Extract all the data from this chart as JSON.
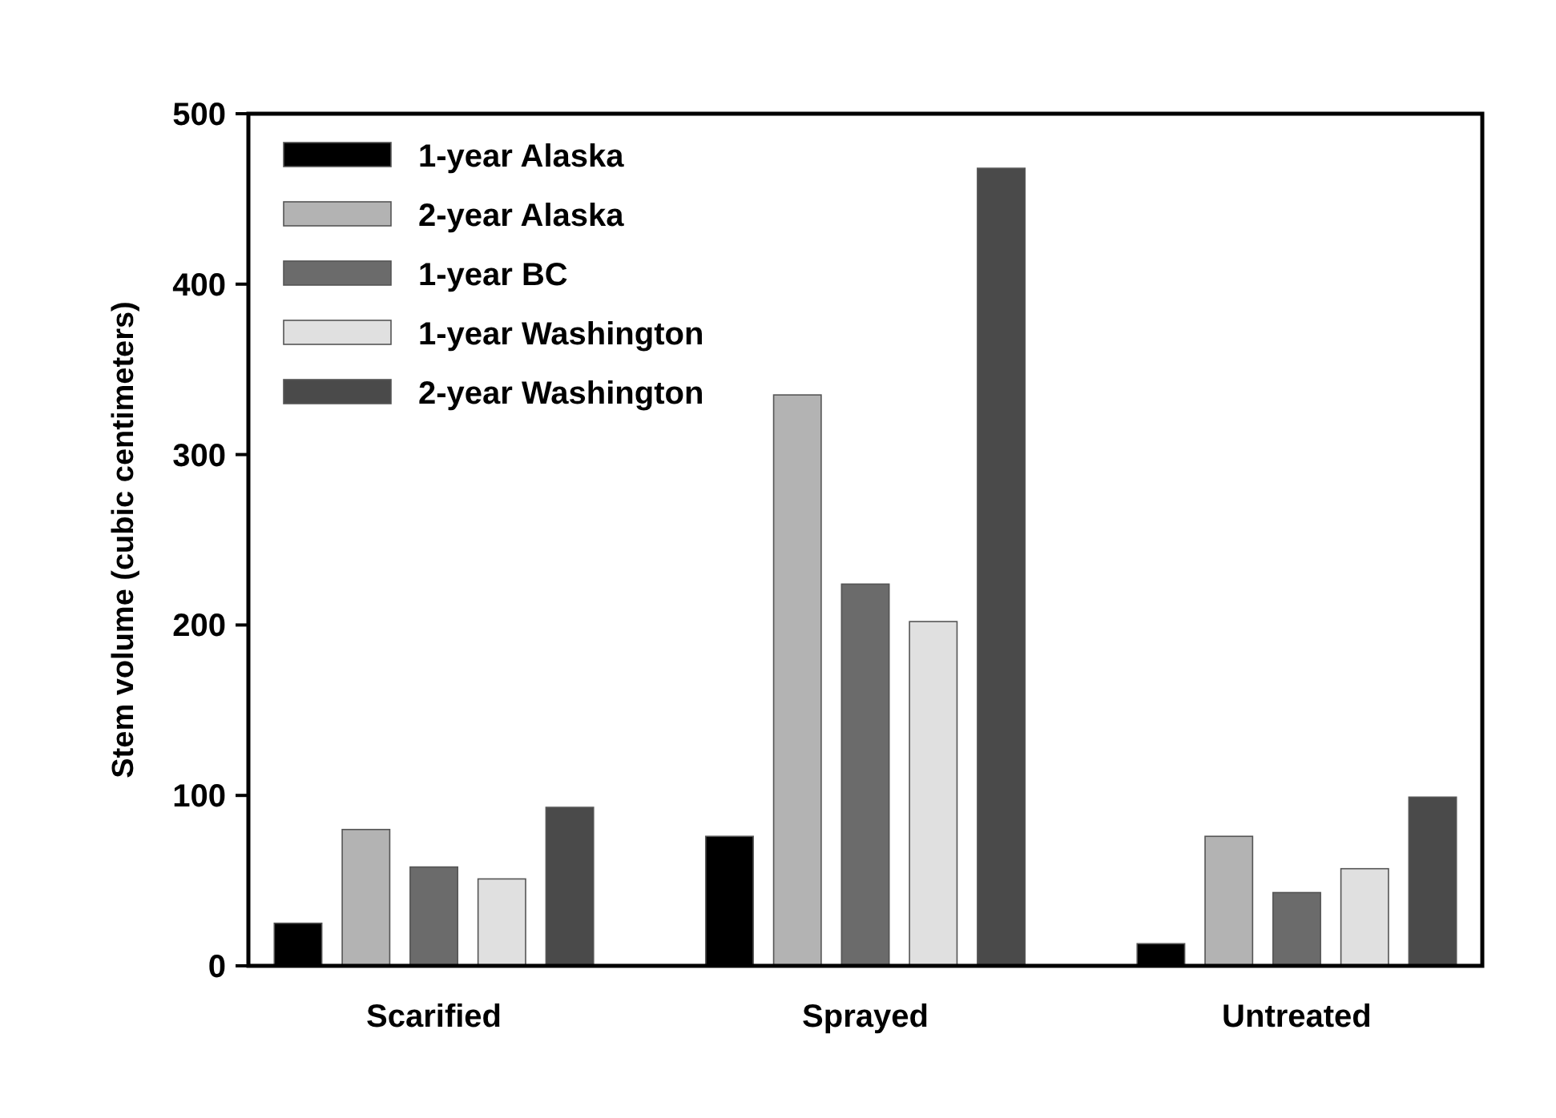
{
  "chart_data": {
    "type": "bar",
    "ylabel": "Stem volume (cubic centimeters)",
    "categories": [
      "Scarified",
      "Sprayed",
      "Untreated"
    ],
    "series": [
      {
        "name": "1-year Alaska",
        "color": "#000000",
        "values": [
          25,
          76,
          13
        ]
      },
      {
        "name": "2-year Alaska",
        "color": "#b3b3b3",
        "values": [
          80,
          335,
          76
        ]
      },
      {
        "name": "1-year BC",
        "color": "#6b6b6b",
        "values": [
          58,
          224,
          43
        ]
      },
      {
        "name": "1-year Washington",
        "color": "#e0e0e0",
        "values": [
          51,
          202,
          57
        ]
      },
      {
        "name": "2-year Washington",
        "color": "#4a4a4a",
        "values": [
          93,
          468,
          99
        ]
      }
    ],
    "ylim": [
      0,
      500
    ],
    "yticks": [
      0,
      100,
      200,
      300,
      400,
      500
    ],
    "legend": "top left"
  }
}
